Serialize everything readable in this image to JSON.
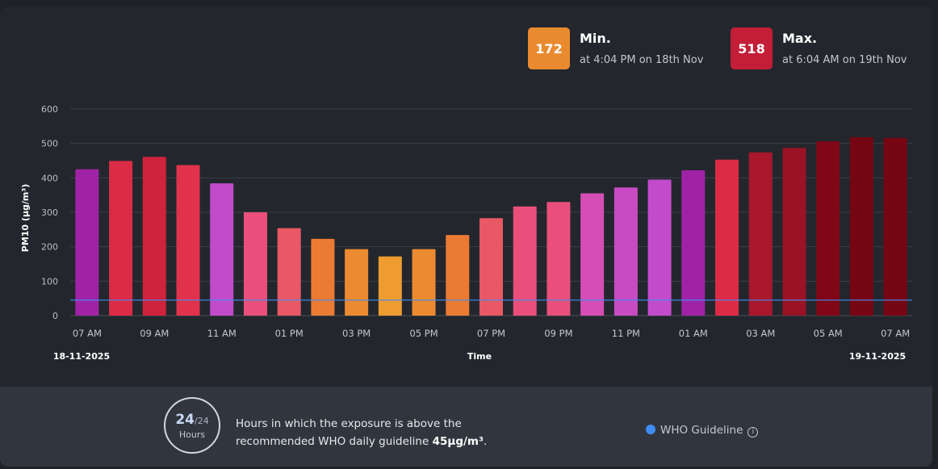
{
  "stats": {
    "min": {
      "value": "172",
      "label": "Min.",
      "sub": "at 4:04 PM on 18th Nov",
      "color": "#ea8a2f"
    },
    "max": {
      "value": "518",
      "label": "Max.",
      "sub": "at 6:04 AM on 19th Nov",
      "color": "#c41e37"
    }
  },
  "chart_data": {
    "type": "bar",
    "ylabel": "PM10 (µg/m³)",
    "xlabel": "Time",
    "ylim": [
      0,
      600
    ],
    "yticks": [
      0,
      100,
      200,
      300,
      400,
      500,
      600
    ],
    "grid": true,
    "start_date": "18-11-2025",
    "end_date": "19-11-2025",
    "categories": [
      "07 AM",
      "08 AM",
      "09 AM",
      "10 AM",
      "11 AM",
      "12 PM",
      "01 PM",
      "02 PM",
      "03 PM",
      "04 PM",
      "05 PM",
      "06 PM",
      "07 PM",
      "08 PM",
      "09 PM",
      "10 PM",
      "11 PM",
      "12 AM",
      "01 AM",
      "02 AM",
      "03 AM",
      "04 AM",
      "05 AM",
      "06 AM",
      "07 AM"
    ],
    "xtick_labels": [
      "07 AM",
      "",
      "09 AM",
      "",
      "11 AM",
      "",
      "01 PM",
      "",
      "03 PM",
      "",
      "05 PM",
      "",
      "07 PM",
      "",
      "09 PM",
      "",
      "11 PM",
      "",
      "01 AM",
      "",
      "03 AM",
      "",
      "05 AM",
      "",
      "07 AM"
    ],
    "values": [
      425,
      449,
      461,
      437,
      384,
      300,
      254,
      223,
      193,
      172,
      193,
      234,
      283,
      317,
      330,
      355,
      372,
      395,
      422,
      453,
      474,
      487,
      506,
      518,
      516
    ],
    "colors": [
      "#a023a6",
      "#dc2b45",
      "#cf223c",
      "#e1324b",
      "#c24bcb",
      "#ea4f7c",
      "#e95865",
      "#eb7b33",
      "#ec8a31",
      "#ee9b30",
      "#ec8a31",
      "#eb7b33",
      "#e95865",
      "#ea4f7c",
      "#ea4f7c",
      "#d54db5",
      "#c84bc4",
      "#c24bcb",
      "#a023a6",
      "#dc2b45",
      "#a8172c",
      "#9a1325",
      "#7f0717",
      "#760613",
      "#760613"
    ],
    "guideline": {
      "value": 45,
      "color": "#3f8cf5"
    }
  },
  "footer": {
    "hours": "24",
    "hours_total": "/24",
    "hours_label": "Hours",
    "text_line1": "Hours in which the exposure is above the",
    "text_line2_prefix": "recommended WHO daily guideline ",
    "text_line2_bold": "45µg/m³",
    "text_line2_suffix": ".",
    "legend_label": "WHO Guideline",
    "legend_color": "#3f8cf5",
    "info_glyph": "i"
  }
}
